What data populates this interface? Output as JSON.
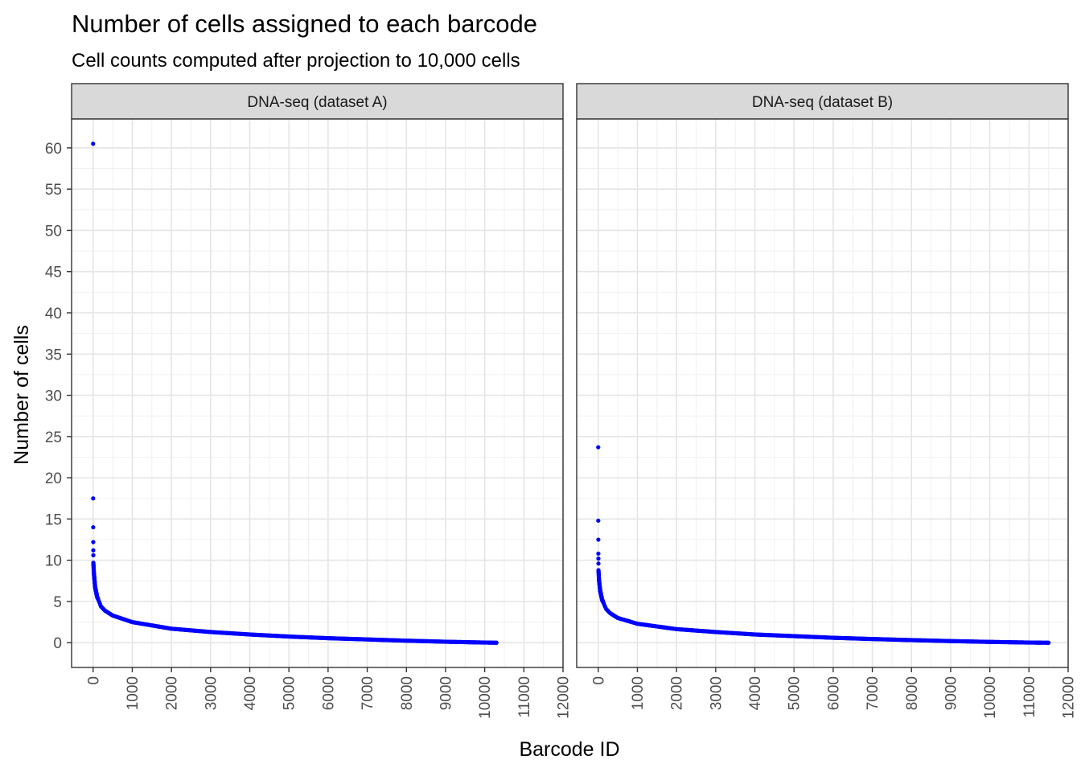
{
  "chart_data": {
    "type": "scatter",
    "title": "Number of cells assigned to each barcode",
    "subtitle": "Cell counts computed after projection to 10,000 cells",
    "xlabel": "Barcode ID",
    "ylabel": "Number of cells",
    "xlim": [
      -550,
      12000
    ],
    "ylim": [
      -3,
      63.5
    ],
    "x_ticks": [
      0,
      1000,
      2000,
      3000,
      4000,
      5000,
      6000,
      7000,
      8000,
      9000,
      10000,
      11000,
      12000
    ],
    "x_tick_labels": [
      "0",
      "1000",
      "2000",
      "3000",
      "4000",
      "5000",
      "6000",
      "7000",
      "8000",
      "9000",
      "10000",
      "11000",
      "12000"
    ],
    "y_ticks": [
      0,
      5,
      10,
      15,
      20,
      25,
      30,
      35,
      40,
      45,
      50,
      55,
      60
    ],
    "y_tick_labels": [
      "0",
      "5",
      "10",
      "15",
      "20",
      "25",
      "30",
      "35",
      "40",
      "45",
      "50",
      "55",
      "60"
    ],
    "point_color": "#0000ff",
    "grid": true,
    "panels": [
      {
        "name": "DNA-seq (dataset A)",
        "n_barcodes": 10300,
        "outliers": [
          {
            "x": 0,
            "y": 60.5
          },
          {
            "x": 1,
            "y": 17.5
          },
          {
            "x": 2,
            "y": 14.0
          },
          {
            "x": 3,
            "y": 12.2
          },
          {
            "x": 4,
            "y": 11.2
          },
          {
            "x": 5,
            "y": 10.6
          }
        ],
        "curve": [
          {
            "x": 6,
            "y": 9.7
          },
          {
            "x": 20,
            "y": 8.4
          },
          {
            "x": 50,
            "y": 6.8
          },
          {
            "x": 100,
            "y": 5.6
          },
          {
            "x": 200,
            "y": 4.4
          },
          {
            "x": 300,
            "y": 3.9
          },
          {
            "x": 500,
            "y": 3.3
          },
          {
            "x": 1000,
            "y": 2.5
          },
          {
            "x": 2000,
            "y": 1.7
          },
          {
            "x": 3000,
            "y": 1.3
          },
          {
            "x": 4000,
            "y": 1.0
          },
          {
            "x": 5000,
            "y": 0.75
          },
          {
            "x": 6000,
            "y": 0.55
          },
          {
            "x": 7000,
            "y": 0.4
          },
          {
            "x": 8000,
            "y": 0.25
          },
          {
            "x": 9000,
            "y": 0.12
          },
          {
            "x": 10000,
            "y": 0.02
          },
          {
            "x": 10300,
            "y": 0.0
          }
        ]
      },
      {
        "name": "DNA-seq (dataset B)",
        "n_barcodes": 11500,
        "outliers": [
          {
            "x": 0,
            "y": 23.7
          },
          {
            "x": 1,
            "y": 14.8
          },
          {
            "x": 2,
            "y": 12.5
          },
          {
            "x": 3,
            "y": 10.8
          },
          {
            "x": 4,
            "y": 10.2
          },
          {
            "x": 5,
            "y": 9.6
          }
        ],
        "curve": [
          {
            "x": 6,
            "y": 8.8
          },
          {
            "x": 20,
            "y": 7.6
          },
          {
            "x": 50,
            "y": 6.3
          },
          {
            "x": 100,
            "y": 5.2
          },
          {
            "x": 200,
            "y": 4.1
          },
          {
            "x": 300,
            "y": 3.6
          },
          {
            "x": 500,
            "y": 3.0
          },
          {
            "x": 1000,
            "y": 2.3
          },
          {
            "x": 2000,
            "y": 1.65
          },
          {
            "x": 3000,
            "y": 1.3
          },
          {
            "x": 4000,
            "y": 1.0
          },
          {
            "x": 5000,
            "y": 0.8
          },
          {
            "x": 6000,
            "y": 0.6
          },
          {
            "x": 7000,
            "y": 0.45
          },
          {
            "x": 8000,
            "y": 0.32
          },
          {
            "x": 9000,
            "y": 0.2
          },
          {
            "x": 10000,
            "y": 0.1
          },
          {
            "x": 11000,
            "y": 0.02
          },
          {
            "x": 11500,
            "y": 0.0
          }
        ]
      }
    ]
  }
}
